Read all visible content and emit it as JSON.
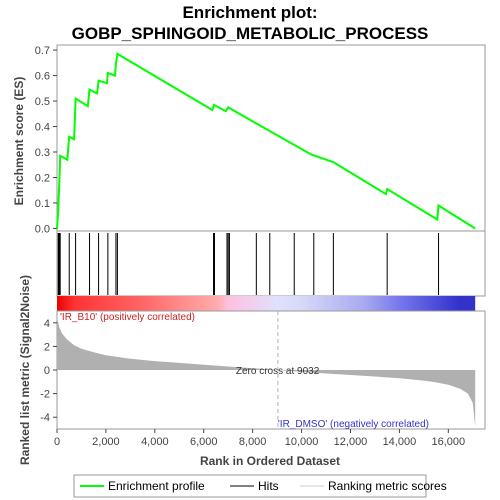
{
  "chart_data": {
    "type": "line",
    "title_line1": "Enrichment plot:",
    "title_line2": "GOBP_SPHINGOID_METABOLIC_PROCESS",
    "es_panel": {
      "ylabel": "Enrichment score (ES)",
      "ylim": [
        -0.01,
        0.72
      ],
      "yticks": [
        "0.0",
        "0.1",
        "0.2",
        "0.3",
        "0.4",
        "0.5",
        "0.6",
        "0.7"
      ],
      "ytick_values": [
        0.0,
        0.1,
        0.2,
        0.3,
        0.4,
        0.5,
        0.6,
        0.7
      ],
      "series": [
        {
          "name": "Enrichment profile",
          "color": "#00ff00",
          "x": [
            0,
            50,
            80,
            110,
            130,
            420,
            500,
            700,
            760,
            1260,
            1330,
            1640,
            1700,
            2040,
            2080,
            2370,
            2410,
            2470,
            6350,
            6420,
            6900,
            7000,
            8000,
            10400,
            11300,
            13450,
            13500,
            15550,
            15600,
            17100
          ],
          "y": [
            0.0,
            0.07,
            0.15,
            0.22,
            0.285,
            0.27,
            0.36,
            0.35,
            0.51,
            0.48,
            0.545,
            0.53,
            0.58,
            0.57,
            0.61,
            0.6,
            0.645,
            0.685,
            0.465,
            0.485,
            0.46,
            0.475,
            0.42,
            0.29,
            0.26,
            0.135,
            0.155,
            0.035,
            0.09,
            0.0
          ]
        }
      ]
    },
    "hits": {
      "name": "Hits",
      "positions": [
        50,
        80,
        110,
        130,
        500,
        760,
        1330,
        1700,
        2080,
        2410,
        2470,
        6400,
        6440,
        6950,
        7000,
        7050,
        8150,
        8700,
        9700,
        10500,
        11300,
        13500,
        15600
      ]
    },
    "metric_panel": {
      "ylabel": "Ranked list metric (Signal2Noise)",
      "ylim": [
        -5,
        5
      ],
      "yticks": [
        "4",
        "2",
        "0",
        "-2",
        "-4"
      ],
      "ytick_values": [
        4,
        2,
        0,
        -2,
        -4
      ],
      "series_name": "Ranking metric scores",
      "profile_x": [
        0,
        30,
        100,
        200,
        400,
        700,
        1000,
        1500,
        2000,
        3000,
        4000,
        5000,
        6000,
        7000,
        8000,
        9032,
        10000,
        11000,
        12000,
        13000,
        14000,
        15000,
        15500,
        16000,
        16500,
        16800,
        17000,
        17100
      ],
      "profile_y": [
        4.8,
        4.2,
        3.6,
        3.1,
        2.6,
        2.1,
        1.8,
        1.5,
        1.25,
        0.95,
        0.75,
        0.6,
        0.45,
        0.3,
        0.15,
        0.0,
        -0.15,
        -0.3,
        -0.42,
        -0.55,
        -0.7,
        -0.9,
        -1.05,
        -1.25,
        -1.6,
        -2.0,
        -2.8,
        -4.8
      ],
      "zero_cross_label": "Zero cross at 9032",
      "zero_cross_x": 9032,
      "pos_label": "'IR_B10' (positively correlated)",
      "neg_label": "'IR_DMSO' (negatively correlated)"
    },
    "xlabel": "Rank in Ordered Dataset",
    "xlim": [
      0,
      17500
    ],
    "xticks": [
      "0",
      "2,000",
      "4,000",
      "6,000",
      "8,000",
      "10,000",
      "12,000",
      "14,000",
      "16,000"
    ],
    "xtick_values": [
      0,
      2000,
      4000,
      6000,
      8000,
      10000,
      12000,
      14000,
      16000
    ],
    "dataset_size": 17100,
    "legend": {
      "placement": "bottom",
      "items": [
        "Enrichment profile",
        "Hits",
        "Ranking metric scores"
      ]
    },
    "colors": {
      "es_line": "#00ff00",
      "hit": "#000000",
      "metric_fill": "#b0b0b0",
      "pos_text": "#cc2222",
      "neg_text": "#3333cc",
      "zero_line": "#b0b0b0"
    },
    "colorbar_stops": [
      {
        "x": 0,
        "color": "#ee0000"
      },
      {
        "x": 700,
        "color": "#ff3333"
      },
      {
        "x": 3500,
        "color": "#ff6666"
      },
      {
        "x": 5000,
        "color": "#ff8a8a"
      },
      {
        "x": 6500,
        "color": "#ffaaaa"
      },
      {
        "x": 7000,
        "color": "#ffc0dd"
      },
      {
        "x": 9000,
        "color": "#e0e0ff"
      },
      {
        "x": 10000,
        "color": "#d8d8f8"
      },
      {
        "x": 12600,
        "color": "#a8a8f0"
      },
      {
        "x": 13000,
        "color": "#9a9aee"
      },
      {
        "x": 14000,
        "color": "#7777ee"
      },
      {
        "x": 16400,
        "color": "#3333cc"
      },
      {
        "x": 17100,
        "color": "#3333cc"
      }
    ]
  }
}
